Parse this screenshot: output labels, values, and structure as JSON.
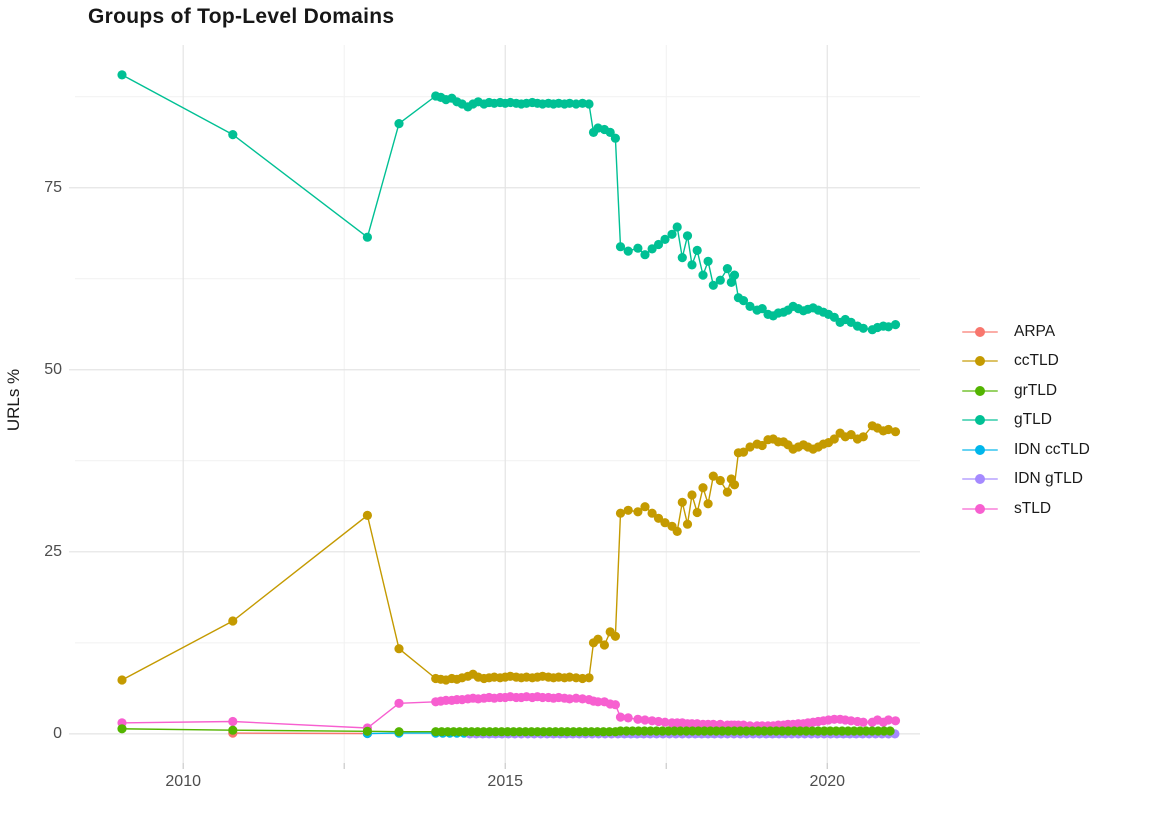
{
  "title": "Groups of Top-Level Domains",
  "colors": {
    "background": "#ffffff",
    "grid_major": "#e4e4e4",
    "grid_minor": "#f1f1f1",
    "tick_mark": "#c9c9c9",
    "axis_text": "#4d4d4d",
    "title_text": "#171717"
  },
  "y_axis": {
    "label": "URLs %",
    "tick_labels": [
      "0",
      "25",
      "50",
      "75"
    ],
    "tick_values": [
      0,
      25,
      50,
      75
    ]
  },
  "x_axis": {
    "tick_labels": [
      "2010",
      "2015",
      "2020"
    ],
    "tick_values": [
      2010,
      2015,
      2020
    ]
  },
  "legend": {
    "items": [
      {
        "label": "ARPA",
        "color": "#F8766D"
      },
      {
        "label": "ccTLD",
        "color": "#C49A00"
      },
      {
        "label": "grTLD",
        "color": "#53B400"
      },
      {
        "label": "gTLD",
        "color": "#00C094"
      },
      {
        "label": "IDN ccTLD",
        "color": "#00B6EB"
      },
      {
        "label": "IDN gTLD",
        "color": "#A58AFF"
      },
      {
        "label": "sTLD",
        "color": "#F75FD0"
      }
    ]
  },
  "chart_data": {
    "type": "line",
    "title": "Groups of Top-Level Domains",
    "xlabel": "",
    "ylabel": "URLs %",
    "x_domain": [
      2008.32,
      2021.44
    ],
    "y_domain": [
      -4.0,
      94.6
    ],
    "x_major_gridlines": [
      2010,
      2015,
      2020
    ],
    "x_minor_gridlines": [
      2012.5,
      2017.5
    ],
    "y_major_gridlines": [
      0,
      25,
      50,
      75
    ],
    "y_minor_gridlines": [
      12.5,
      37.5,
      62.5,
      87.5
    ],
    "legend_position": "right",
    "grid": true,
    "point_radius": 4.6,
    "line_width": 1.4,
    "draw_order": [
      "ARPA",
      "IDN ccTLD",
      "IDN gTLD",
      "sTLD",
      "ccTLD",
      "gTLD",
      "grTLD"
    ],
    "series": [
      {
        "name": "ARPA",
        "color": "#F8766D",
        "points": [
          [
            2010.77,
            0.1
          ],
          [
            2012.86,
            0.05
          ]
        ]
      },
      {
        "name": "ccTLD",
        "color": "#C49A00",
        "points": [
          [
            2009.05,
            7.4
          ],
          [
            2010.77,
            15.5
          ],
          [
            2012.86,
            30.0
          ],
          [
            2013.35,
            11.7
          ],
          [
            2013.92,
            7.6
          ],
          [
            2014.0,
            7.5
          ],
          [
            2014.08,
            7.4
          ],
          [
            2014.17,
            7.6
          ],
          [
            2014.25,
            7.5
          ],
          [
            2014.33,
            7.7
          ],
          [
            2014.42,
            7.9
          ],
          [
            2014.5,
            8.2
          ],
          [
            2014.58,
            7.8
          ],
          [
            2014.67,
            7.6
          ],
          [
            2014.75,
            7.7
          ],
          [
            2014.83,
            7.8
          ],
          [
            2014.92,
            7.7
          ],
          [
            2015.0,
            7.8
          ],
          [
            2015.08,
            7.9
          ],
          [
            2015.17,
            7.8
          ],
          [
            2015.25,
            7.7
          ],
          [
            2015.33,
            7.8
          ],
          [
            2015.42,
            7.7
          ],
          [
            2015.5,
            7.8
          ],
          [
            2015.58,
            7.9
          ],
          [
            2015.67,
            7.8
          ],
          [
            2015.75,
            7.7
          ],
          [
            2015.83,
            7.8
          ],
          [
            2015.92,
            7.7
          ],
          [
            2016.0,
            7.8
          ],
          [
            2016.1,
            7.7
          ],
          [
            2016.2,
            7.6
          ],
          [
            2016.3,
            7.7
          ],
          [
            2016.37,
            12.5
          ],
          [
            2016.44,
            13.0
          ],
          [
            2016.54,
            12.2
          ],
          [
            2016.63,
            14.0
          ],
          [
            2016.71,
            13.4
          ],
          [
            2016.79,
            30.3
          ],
          [
            2016.91,
            30.7
          ],
          [
            2017.06,
            30.5
          ],
          [
            2017.17,
            31.2
          ],
          [
            2017.28,
            30.3
          ],
          [
            2017.38,
            29.6
          ],
          [
            2017.48,
            29.0
          ],
          [
            2017.59,
            28.5
          ],
          [
            2017.67,
            27.8
          ],
          [
            2017.75,
            31.8
          ],
          [
            2017.83,
            28.8
          ],
          [
            2017.9,
            32.8
          ],
          [
            2017.98,
            30.4
          ],
          [
            2018.07,
            33.8
          ],
          [
            2018.15,
            31.6
          ],
          [
            2018.23,
            35.4
          ],
          [
            2018.34,
            34.8
          ],
          [
            2018.45,
            33.2
          ],
          [
            2018.51,
            35.0
          ],
          [
            2018.56,
            34.2
          ],
          [
            2018.62,
            38.6
          ],
          [
            2018.7,
            38.7
          ],
          [
            2018.8,
            39.4
          ],
          [
            2018.91,
            39.8
          ],
          [
            2018.99,
            39.6
          ],
          [
            2019.08,
            40.4
          ],
          [
            2019.16,
            40.5
          ],
          [
            2019.24,
            40.1
          ],
          [
            2019.32,
            40.1
          ],
          [
            2019.39,
            39.7
          ],
          [
            2019.47,
            39.1
          ],
          [
            2019.55,
            39.4
          ],
          [
            2019.63,
            39.7
          ],
          [
            2019.7,
            39.4
          ],
          [
            2019.78,
            39.1
          ],
          [
            2019.86,
            39.4
          ],
          [
            2019.94,
            39.8
          ],
          [
            2020.02,
            40.0
          ],
          [
            2020.11,
            40.5
          ],
          [
            2020.2,
            41.3
          ],
          [
            2020.28,
            40.8
          ],
          [
            2020.37,
            41.1
          ],
          [
            2020.47,
            40.5
          ],
          [
            2020.56,
            40.8
          ],
          [
            2020.7,
            42.3
          ],
          [
            2020.78,
            42.0
          ],
          [
            2020.87,
            41.6
          ],
          [
            2020.95,
            41.8
          ],
          [
            2021.06,
            41.5
          ]
        ]
      },
      {
        "name": "grTLD",
        "color": "#53B400",
        "points": [
          [
            2009.05,
            0.7
          ],
          [
            2010.77,
            0.5
          ],
          [
            2012.86,
            0.35
          ],
          [
            2013.35,
            0.3
          ]
        ],
        "segments": [
          {
            "x_start": 2013.92,
            "x_end": 2016.71,
            "step": 0.093,
            "y": 0.3
          },
          {
            "x_start": 2016.79,
            "x_end": 2021.06,
            "step": 0.093,
            "y": 0.4
          }
        ]
      },
      {
        "name": "gTLD",
        "color": "#00C094",
        "points": [
          [
            2009.05,
            90.5
          ],
          [
            2010.77,
            82.3
          ],
          [
            2012.86,
            68.2
          ],
          [
            2013.35,
            83.8
          ],
          [
            2013.92,
            87.6
          ],
          [
            2014.0,
            87.4
          ],
          [
            2014.08,
            87.1
          ],
          [
            2014.17,
            87.3
          ],
          [
            2014.25,
            86.8
          ],
          [
            2014.33,
            86.5
          ],
          [
            2014.42,
            86.1
          ],
          [
            2014.5,
            86.5
          ],
          [
            2014.58,
            86.8
          ],
          [
            2014.67,
            86.5
          ],
          [
            2014.75,
            86.7
          ],
          [
            2014.83,
            86.6
          ],
          [
            2014.92,
            86.7
          ],
          [
            2015.0,
            86.6
          ],
          [
            2015.08,
            86.7
          ],
          [
            2015.17,
            86.6
          ],
          [
            2015.25,
            86.5
          ],
          [
            2015.33,
            86.6
          ],
          [
            2015.42,
            86.7
          ],
          [
            2015.5,
            86.6
          ],
          [
            2015.58,
            86.5
          ],
          [
            2015.67,
            86.6
          ],
          [
            2015.75,
            86.5
          ],
          [
            2015.83,
            86.6
          ],
          [
            2015.92,
            86.5
          ],
          [
            2016.0,
            86.6
          ],
          [
            2016.1,
            86.5
          ],
          [
            2016.2,
            86.6
          ],
          [
            2016.3,
            86.5
          ],
          [
            2016.37,
            82.6
          ],
          [
            2016.44,
            83.2
          ],
          [
            2016.54,
            83.0
          ],
          [
            2016.63,
            82.6
          ],
          [
            2016.71,
            81.8
          ],
          [
            2016.79,
            66.9
          ],
          [
            2016.91,
            66.3
          ],
          [
            2017.06,
            66.7
          ],
          [
            2017.17,
            65.8
          ],
          [
            2017.28,
            66.6
          ],
          [
            2017.38,
            67.2
          ],
          [
            2017.48,
            67.9
          ],
          [
            2017.59,
            68.6
          ],
          [
            2017.67,
            69.6
          ],
          [
            2017.75,
            65.4
          ],
          [
            2017.83,
            68.4
          ],
          [
            2017.9,
            64.4
          ],
          [
            2017.98,
            66.4
          ],
          [
            2018.07,
            63.0
          ],
          [
            2018.15,
            64.9
          ],
          [
            2018.23,
            61.6
          ],
          [
            2018.34,
            62.3
          ],
          [
            2018.45,
            63.9
          ],
          [
            2018.51,
            62.0
          ],
          [
            2018.56,
            63.0
          ],
          [
            2018.62,
            59.9
          ],
          [
            2018.7,
            59.5
          ],
          [
            2018.8,
            58.7
          ],
          [
            2018.91,
            58.2
          ],
          [
            2018.99,
            58.4
          ],
          [
            2019.08,
            57.6
          ],
          [
            2019.16,
            57.4
          ],
          [
            2019.24,
            57.8
          ],
          [
            2019.32,
            57.9
          ],
          [
            2019.39,
            58.2
          ],
          [
            2019.47,
            58.7
          ],
          [
            2019.55,
            58.4
          ],
          [
            2019.63,
            58.1
          ],
          [
            2019.7,
            58.3
          ],
          [
            2019.78,
            58.5
          ],
          [
            2019.86,
            58.2
          ],
          [
            2019.94,
            57.9
          ],
          [
            2020.02,
            57.6
          ],
          [
            2020.11,
            57.2
          ],
          [
            2020.2,
            56.5
          ],
          [
            2020.28,
            56.9
          ],
          [
            2020.37,
            56.5
          ],
          [
            2020.47,
            56.0
          ],
          [
            2020.56,
            55.7
          ],
          [
            2020.7,
            55.5
          ],
          [
            2020.78,
            55.8
          ],
          [
            2020.87,
            56.0
          ],
          [
            2020.95,
            55.9
          ],
          [
            2021.06,
            56.2
          ]
        ]
      },
      {
        "name": "IDN ccTLD",
        "color": "#00B6EB",
        "points": [
          [
            2012.86,
            0.05
          ],
          [
            2013.35,
            0.1
          ]
        ],
        "segments": [
          {
            "x_start": 2013.92,
            "x_end": 2021.06,
            "step": 0.11,
            "y": 0.1
          }
        ]
      },
      {
        "name": "IDN gTLD",
        "color": "#A58AFF",
        "points": [],
        "segments": [
          {
            "x_start": 2014.45,
            "x_end": 2021.06,
            "step": 0.1,
            "y": 0.0
          }
        ]
      },
      {
        "name": "sTLD",
        "color": "#F75FD0",
        "points": [
          [
            2009.05,
            1.5
          ],
          [
            2010.77,
            1.7
          ],
          [
            2012.86,
            0.8
          ],
          [
            2013.35,
            4.2
          ],
          [
            2013.92,
            4.4
          ],
          [
            2014.0,
            4.5
          ],
          [
            2014.08,
            4.6
          ],
          [
            2014.17,
            4.6
          ],
          [
            2014.25,
            4.7
          ],
          [
            2014.33,
            4.7
          ],
          [
            2014.42,
            4.8
          ],
          [
            2014.5,
            4.9
          ],
          [
            2014.58,
            4.8
          ],
          [
            2014.67,
            4.9
          ],
          [
            2014.75,
            5.0
          ],
          [
            2014.83,
            4.9
          ],
          [
            2014.92,
            5.0
          ],
          [
            2015.0,
            5.0
          ],
          [
            2015.08,
            5.1
          ],
          [
            2015.17,
            5.0
          ],
          [
            2015.25,
            5.0
          ],
          [
            2015.33,
            5.1
          ],
          [
            2015.42,
            5.0
          ],
          [
            2015.5,
            5.1
          ],
          [
            2015.58,
            5.0
          ],
          [
            2015.67,
            5.0
          ],
          [
            2015.75,
            4.9
          ],
          [
            2015.83,
            5.0
          ],
          [
            2015.92,
            4.9
          ],
          [
            2016.0,
            4.8
          ],
          [
            2016.1,
            4.9
          ],
          [
            2016.2,
            4.8
          ],
          [
            2016.3,
            4.7
          ],
          [
            2016.37,
            4.5
          ],
          [
            2016.44,
            4.4
          ],
          [
            2016.54,
            4.4
          ],
          [
            2016.63,
            4.1
          ],
          [
            2016.71,
            4.0
          ],
          [
            2016.79,
            2.3
          ],
          [
            2016.91,
            2.2
          ],
          [
            2017.06,
            2.0
          ],
          [
            2017.17,
            1.9
          ],
          [
            2017.28,
            1.8
          ],
          [
            2017.38,
            1.7
          ],
          [
            2017.48,
            1.6
          ],
          [
            2017.59,
            1.5
          ],
          [
            2017.67,
            1.5
          ],
          [
            2017.75,
            1.5
          ],
          [
            2017.83,
            1.4
          ],
          [
            2017.9,
            1.4
          ],
          [
            2017.98,
            1.4
          ],
          [
            2018.07,
            1.3
          ],
          [
            2018.15,
            1.3
          ],
          [
            2018.23,
            1.3
          ],
          [
            2018.34,
            1.3
          ],
          [
            2018.45,
            1.2
          ],
          [
            2018.51,
            1.2
          ],
          [
            2018.56,
            1.2
          ],
          [
            2018.62,
            1.2
          ],
          [
            2018.7,
            1.2
          ],
          [
            2018.8,
            1.1
          ],
          [
            2018.91,
            1.1
          ],
          [
            2018.99,
            1.1
          ],
          [
            2019.08,
            1.1
          ],
          [
            2019.16,
            1.1
          ],
          [
            2019.24,
            1.2
          ],
          [
            2019.32,
            1.2
          ],
          [
            2019.39,
            1.3
          ],
          [
            2019.47,
            1.3
          ],
          [
            2019.55,
            1.4
          ],
          [
            2019.63,
            1.4
          ],
          [
            2019.7,
            1.5
          ],
          [
            2019.78,
            1.6
          ],
          [
            2019.86,
            1.7
          ],
          [
            2019.94,
            1.8
          ],
          [
            2020.02,
            1.9
          ],
          [
            2020.11,
            2.0
          ],
          [
            2020.2,
            2.0
          ],
          [
            2020.28,
            1.9
          ],
          [
            2020.37,
            1.8
          ],
          [
            2020.47,
            1.7
          ],
          [
            2020.56,
            1.6
          ],
          [
            2020.7,
            1.6
          ],
          [
            2020.78,
            1.9
          ],
          [
            2020.87,
            1.6
          ],
          [
            2020.95,
            1.9
          ],
          [
            2021.06,
            1.8
          ]
        ]
      }
    ]
  }
}
